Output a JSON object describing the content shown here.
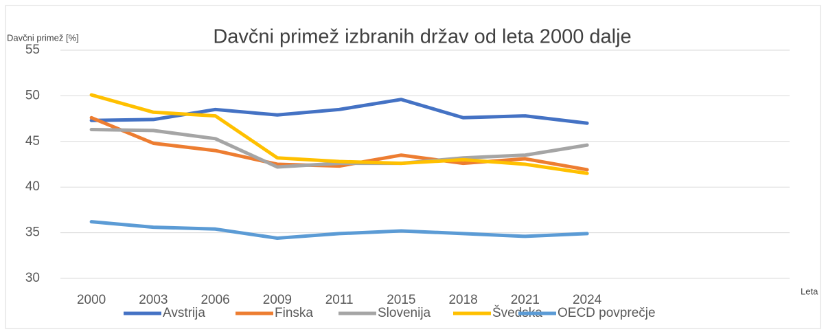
{
  "chart_data": {
    "type": "line",
    "title": "Davčni primež izbranih držav od leta 2000 dalje",
    "y_label": "Davčni primež [%]",
    "x_label": "Leta",
    "categories": [
      "2000",
      "2003",
      "2006",
      "2009",
      "2011",
      "2015",
      "2018",
      "2021",
      "2024"
    ],
    "series": [
      {
        "name": "Avstrija",
        "color": "#4472c4",
        "values": [
          47.3,
          47.4,
          48.5,
          47.9,
          48.5,
          49.6,
          47.6,
          47.8,
          47.0
        ]
      },
      {
        "name": "Finska",
        "color": "#ed7d31",
        "values": [
          47.6,
          44.8,
          44.0,
          42.5,
          42.3,
          43.5,
          42.6,
          43.1,
          41.9
        ]
      },
      {
        "name": "Slovenija",
        "color": "#a5a5a5",
        "values": [
          46.3,
          46.2,
          45.3,
          42.2,
          42.6,
          42.6,
          43.2,
          43.5,
          44.6
        ]
      },
      {
        "name": "Švedska",
        "color": "#ffc000",
        "values": [
          50.1,
          48.2,
          47.8,
          43.2,
          42.8,
          42.6,
          43.0,
          42.5,
          41.5
        ]
      },
      {
        "name": "OECD povprečje",
        "color": "#5b9bd5",
        "values": [
          36.2,
          35.6,
          35.4,
          34.4,
          34.9,
          35.2,
          34.9,
          34.6,
          34.9
        ]
      }
    ],
    "ylim": [
      30,
      55
    ],
    "yticks": [
      30,
      35,
      40,
      45,
      50,
      55
    ],
    "grid": true,
    "legend": "bottom"
  }
}
